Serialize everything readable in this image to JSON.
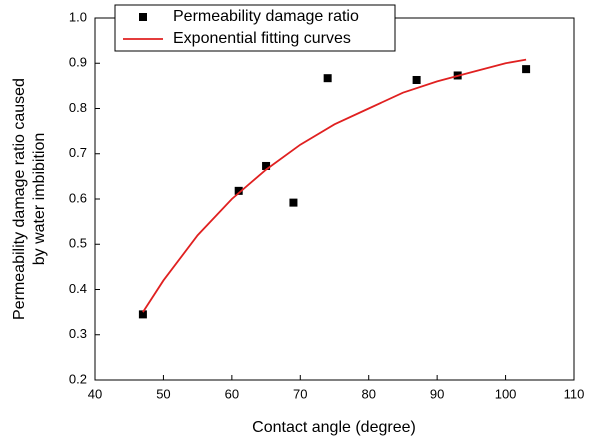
{
  "chart_data": {
    "type": "scatter",
    "xlabel": "Contact angle (degree)",
    "ylabel": [
      "Permeability damage ratio caused",
      "by water imbibition"
    ],
    "xlim": [
      40,
      110
    ],
    "xticks": [
      40,
      50,
      60,
      70,
      80,
      90,
      100,
      110
    ],
    "ylim": [
      0.2,
      1
    ],
    "yticks": [
      0.2,
      0.3,
      0.4,
      0.5,
      0.6,
      0.7,
      0.8,
      0.9,
      {
        "value": 1,
        "label": "1.0"
      }
    ],
    "legend": "upper left",
    "series": [
      {
        "name": "Permeability damage ratio",
        "kind": "scatter",
        "marker": "square",
        "color": "#000000",
        "x": [
          47,
          61,
          65,
          69,
          74,
          87,
          93,
          103
        ],
        "values": [
          0.345,
          0.618,
          0.673,
          0.592,
          0.867,
          0.863,
          0.873,
          0.887
        ]
      },
      {
        "name": "Exponential fitting curves",
        "kind": "line",
        "color": "#e02020",
        "x": [
          47,
          50,
          55,
          60,
          65,
          70,
          75,
          80,
          85,
          90,
          95,
          100,
          103
        ],
        "values": [
          0.35,
          0.42,
          0.52,
          0.6,
          0.665,
          0.72,
          0.765,
          0.8,
          0.835,
          0.86,
          0.88,
          0.9,
          0.908
        ]
      }
    ]
  }
}
